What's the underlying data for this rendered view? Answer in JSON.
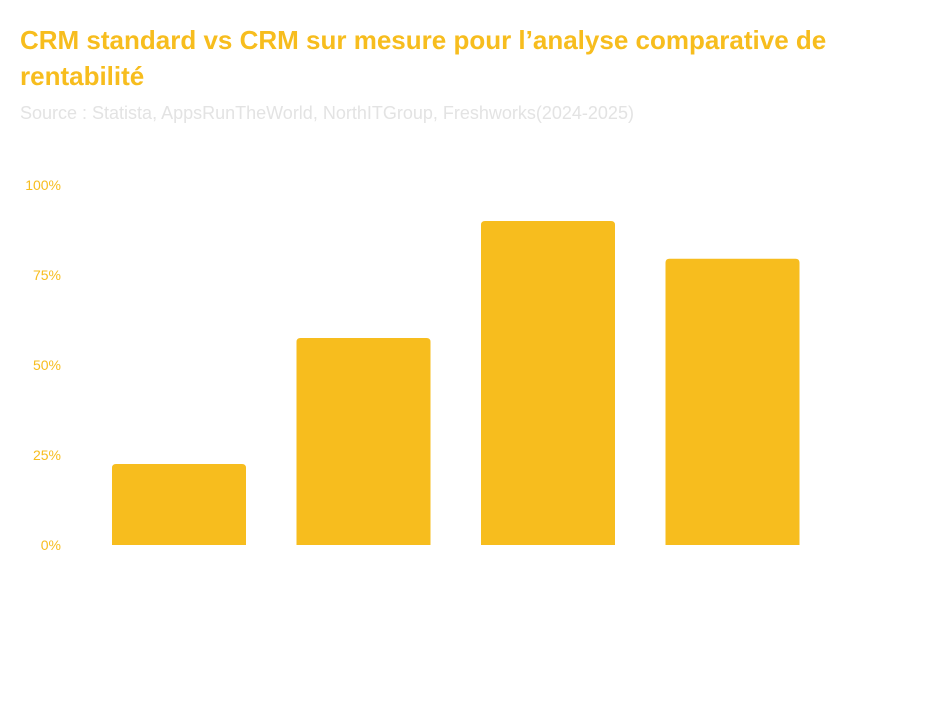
{
  "header": {
    "title": "CRM standard vs CRM sur mesure pour l’analyse comparative de rentabilité",
    "subtitle": "Source : Statista, AppsRunTheWorld, NorthITGroup, Freshworks(2024-2025)"
  },
  "colors": {
    "accent": "#f7bd1e",
    "subtitle": "#e3e3e3",
    "background": "#ffffff"
  },
  "chart_data": {
    "type": "bar",
    "title": "CRM standard vs CRM sur mesure pour l’analyse comparative de rentabilité",
    "xlabel": "",
    "ylabel": "",
    "ylim": [
      0,
      100
    ],
    "yticks": [
      "0%",
      "25%",
      "50%",
      "75%",
      "100%"
    ],
    "ytick_values": [
      0,
      25,
      50,
      75,
      100
    ],
    "categories": [
      "",
      "",
      "",
      ""
    ],
    "values": [
      22.5,
      57.5,
      90,
      79.5
    ],
    "grid": false,
    "legend": "none"
  }
}
